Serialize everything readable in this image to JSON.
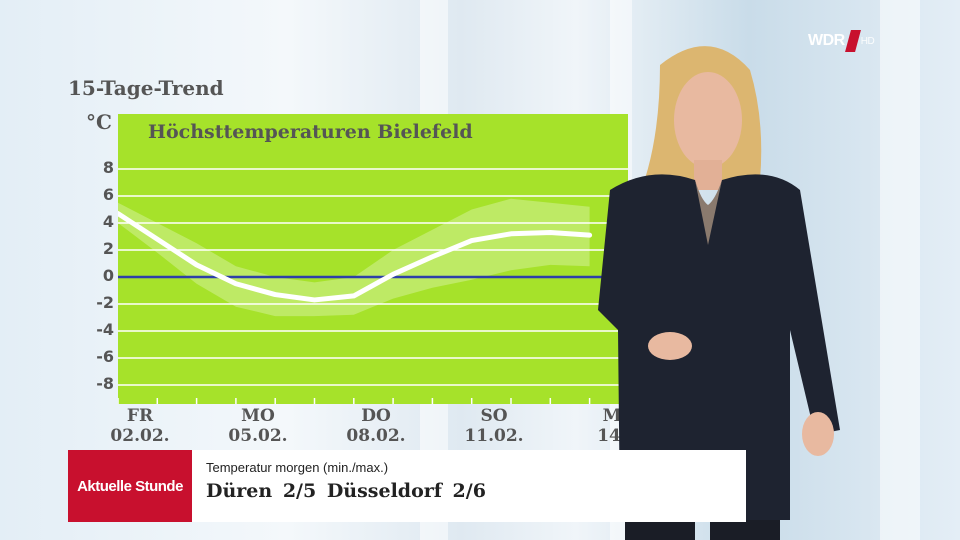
{
  "broadcast": {
    "logo": "WDR",
    "logo_badge": "HD"
  },
  "graphic": {
    "heading": "15-Tage-Trend",
    "unit": "°C"
  },
  "chart_data": {
    "type": "line",
    "title": "Höchsttemperaturen Bielefeld",
    "ylim": [
      -9,
      10
    ],
    "y_ticks": [
      8,
      6,
      4,
      2,
      0,
      -2,
      -4,
      -6,
      -8
    ],
    "x_ticks": [
      {
        "day": "FR",
        "date": "02.02."
      },
      {
        "day": "MO",
        "date": "05.02."
      },
      {
        "day": "DO",
        "date": "08.02."
      },
      {
        "day": "SO",
        "date": "11.02."
      },
      {
        "day": "M",
        "date": "14."
      }
    ],
    "series": [
      {
        "dates": [
          "02.02.",
          "03.02.",
          "04.02.",
          "05.02.",
          "06.02.",
          "07.02.",
          "08.02.",
          "09.02.",
          "10.02.",
          "11.02.",
          "12.02.",
          "13.02.",
          "14.02."
        ],
        "values": [
          4.7,
          2.8,
          0.9,
          -0.5,
          -1.3,
          -1.7,
          -1.4,
          0.2,
          1.5,
          2.7,
          3.2,
          3.3,
          3.1
        ]
      }
    ],
    "band_upper": [
      5.5,
      4.0,
      2.5,
      0.8,
      0.0,
      -0.4,
      0.0,
      2.0,
      3.5,
      5.0,
      5.8,
      5.5,
      5.2
    ],
    "band_lower": [
      4.0,
      1.8,
      -0.5,
      -2.2,
      -2.9,
      -2.9,
      -2.8,
      -1.6,
      -0.8,
      -0.2,
      0.5,
      0.9,
      0.8
    ],
    "zero_line_color": "#2d3fa8",
    "background_color": "#a6e22a",
    "grid": true
  },
  "ticker": {
    "tag": "Aktuelle Stunde",
    "label": "Temperatur morgen (min./max.)",
    "value": "Düren 2/5   Düsseldorf 2/6"
  }
}
